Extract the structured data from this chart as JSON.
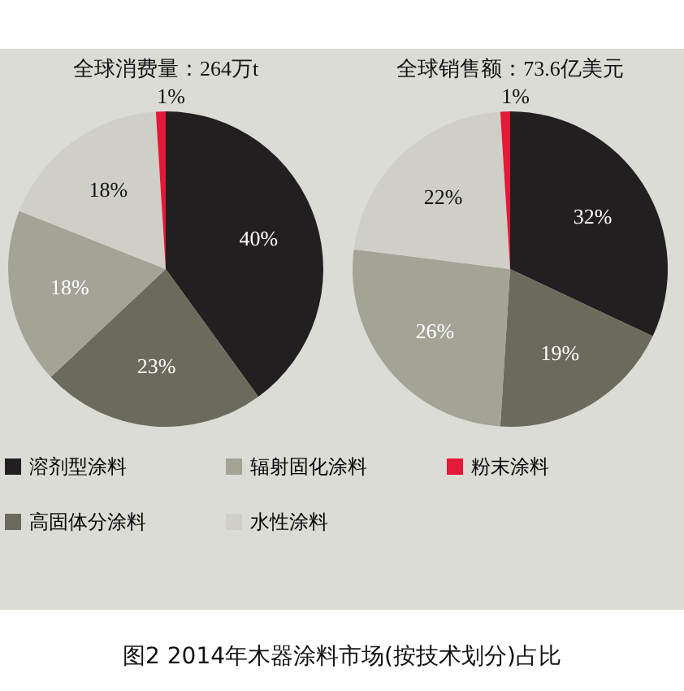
{
  "chart_data": [
    {
      "type": "pie",
      "title": "全球消费量：264万t",
      "categories": [
        "溶剂型涂料",
        "高固体分涂料",
        "辐射固化涂料",
        "水性涂料",
        "粉末涂料"
      ],
      "values": [
        40,
        23,
        18,
        18,
        1
      ],
      "colors": [
        "#231f20",
        "#6b6a5c",
        "#a3a396",
        "#cfcfc7",
        "#e31937"
      ],
      "value_labels": [
        "40%",
        "23%",
        "18%",
        "18%",
        "1%"
      ],
      "legend": "bottom",
      "annotations": [
        "图2  2014年木器涂料市场(按技术划分)占比"
      ]
    },
    {
      "type": "pie",
      "title": "全球销售额：73.6亿美元",
      "categories": [
        null,
        null,
        null,
        null,
        null
      ],
      "values": [
        32,
        19,
        26,
        22,
        1
      ],
      "colors": [
        "#231f20",
        "#6b6a5c",
        "#a3a396",
        "#cfcfc7",
        "#e31937"
      ],
      "value_labels": [
        "32%",
        "19%",
        "26%",
        "22%",
        "1%"
      ]
    }
  ]
}
